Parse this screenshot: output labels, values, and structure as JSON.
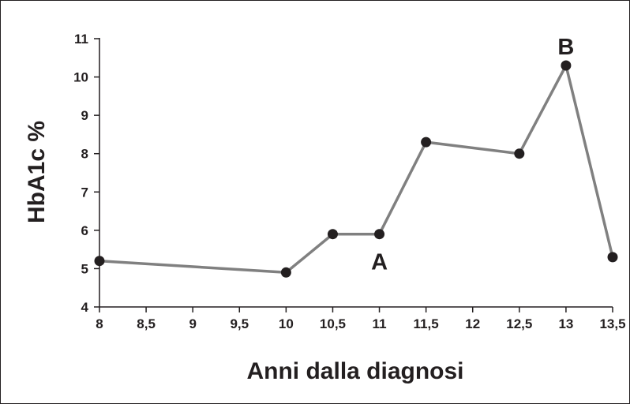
{
  "chart_data": {
    "type": "line",
    "xlabel": "Anni dalla diagnosi",
    "ylabel": "HbA1c %",
    "xlim": [
      8,
      13.5
    ],
    "ylim": [
      4,
      11
    ],
    "x_ticks": [
      8,
      8.5,
      9,
      9.5,
      10,
      10.5,
      11,
      11.5,
      12,
      12.5,
      13,
      13.5
    ],
    "x_tick_labels": [
      "8",
      "8,5",
      "9",
      "9,5",
      "10",
      "10,5",
      "11",
      "11,5",
      "12",
      "12,5",
      "13",
      "13,5"
    ],
    "y_ticks": [
      4,
      5,
      6,
      7,
      8,
      9,
      10,
      11
    ],
    "y_tick_labels": [
      "4",
      "5",
      "6",
      "7",
      "8",
      "9",
      "10",
      "11"
    ],
    "series": [
      {
        "x": [
          8,
          10,
          10.5,
          11,
          11.5,
          12.5,
          13,
          13.5
        ],
        "y": [
          5.2,
          4.9,
          5.9,
          5.9,
          8.3,
          8.0,
          10.3,
          5.3
        ]
      }
    ],
    "annotations": [
      {
        "label": "A",
        "x": 11
      },
      {
        "label": "B",
        "x": 13
      }
    ],
    "colors": {
      "line": "#808080",
      "marker": "#231f20",
      "axis": "#231f20"
    }
  }
}
